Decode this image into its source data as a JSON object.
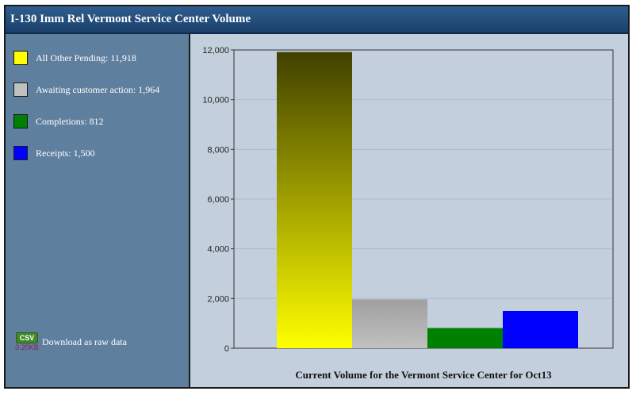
{
  "window": {
    "title": "I-130 Imm Rel Vermont Service Center Volume"
  },
  "legend": [
    {
      "label": "All Other Pending: 11,918",
      "color": "#ffff00"
    },
    {
      "label": "Awaiting customer action: 1,964",
      "color": "#c0c0c0"
    },
    {
      "label": "Completions: 812",
      "color": "#008000"
    },
    {
      "label": "Receipts: 1,500",
      "color": "#0000ff"
    }
  ],
  "download": {
    "badge": "CSV",
    "size": "0.20KB",
    "label": "Download as raw data"
  },
  "chart_data": {
    "type": "bar",
    "title": "Current Volume for the Vermont Service Center for Oct13",
    "categories": [
      "All Other Pending",
      "Awaiting customer action",
      "Completions",
      "Receipts"
    ],
    "values": [
      11918,
      1964,
      812,
      1500
    ],
    "colors": [
      "#ffff00",
      "#c0c0c0",
      "#008000",
      "#0000ff"
    ],
    "gradient_top_colors": [
      "#404000",
      "#a0a0a0",
      null,
      null
    ],
    "ylim": [
      0,
      12000
    ],
    "yticks": [
      0,
      2000,
      4000,
      6000,
      8000,
      10000,
      12000
    ],
    "ytick_labels": [
      "0",
      "2,000",
      "4,000",
      "6,000",
      "8,000",
      "10,000",
      "12,000"
    ],
    "grid": true,
    "legend_position": "left"
  }
}
